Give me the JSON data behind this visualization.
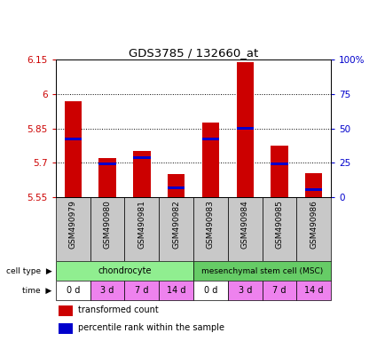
{
  "title": "GDS3785 / 132660_at",
  "samples": [
    "GSM490979",
    "GSM490980",
    "GSM490981",
    "GSM490982",
    "GSM490983",
    "GSM490984",
    "GSM490985",
    "GSM490986"
  ],
  "transformed_count": [
    5.97,
    5.72,
    5.75,
    5.65,
    5.875,
    6.14,
    5.775,
    5.655
  ],
  "percentile_rank": [
    0.425,
    0.245,
    0.29,
    0.07,
    0.425,
    0.5,
    0.245,
    0.055
  ],
  "ymin": 5.55,
  "ymax": 6.15,
  "yticks": [
    5.55,
    5.7,
    5.85,
    6.0,
    6.15
  ],
  "ytick_labels": [
    "5.55",
    "5.7",
    "5.85",
    "6",
    "6.15"
  ],
  "right_yticks": [
    0.0,
    0.25,
    0.5,
    0.75,
    1.0
  ],
  "right_ytick_labels": [
    "0",
    "25",
    "50",
    "75",
    "100%"
  ],
  "cell_types": [
    {
      "label": "chondrocyte",
      "color": "#90ee90"
    },
    {
      "label": "mesenchymal stem cell (MSC)",
      "color": "#66cc66"
    }
  ],
  "time_labels": [
    "0 d",
    "3 d",
    "7 d",
    "14 d",
    "0 d",
    "3 d",
    "7 d",
    "14 d"
  ],
  "time_colors": [
    "#ffffff",
    "#ee82ee",
    "#ee82ee",
    "#ee82ee",
    "#ffffff",
    "#ee82ee",
    "#ee82ee",
    "#ee82ee"
  ],
  "bar_color": "#cc0000",
  "blue_color": "#0000cc",
  "bar_width": 0.5,
  "grid_color": "#000000",
  "left_tick_color": "#cc0000",
  "right_tick_color": "#0000cc",
  "legend_red": "transformed count",
  "legend_blue": "percentile rank within the sample",
  "bg_xticklabel": "#c8c8c8",
  "cell_type_label": "cell type",
  "time_label": "time"
}
